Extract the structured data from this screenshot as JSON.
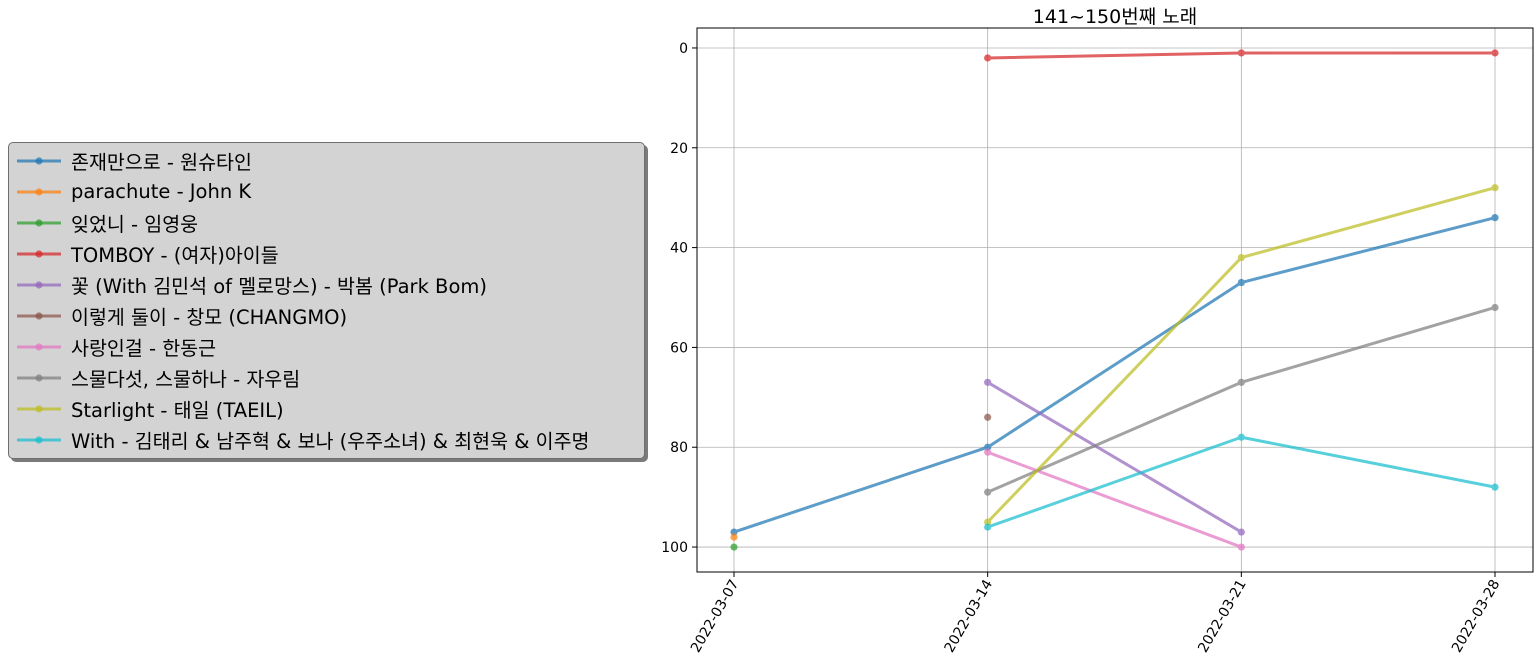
{
  "chart_data": {
    "type": "line",
    "title": "141~150번째 노래",
    "xlabel": "",
    "ylabel": "",
    "x": [
      "2022-03-07",
      "2022-03-14",
      "2022-03-21",
      "2022-03-28"
    ],
    "ylim": [
      105,
      -4
    ],
    "y_inverted": true,
    "yticks": [
      0,
      20,
      40,
      60,
      80,
      100
    ],
    "grid": true,
    "legend_position": "left-outside",
    "series": [
      {
        "name": "존재만으로 - 원슈타인",
        "color": "#1f77b4",
        "values": [
          97,
          80,
          47,
          34
        ]
      },
      {
        "name": "parachute - John K",
        "color": "#ff7f0e",
        "values": [
          98,
          null,
          null,
          null
        ]
      },
      {
        "name": "잊었니 - 임영웅",
        "color": "#2ca02c",
        "values": [
          100,
          null,
          null,
          null
        ]
      },
      {
        "name": "TOMBOY - (여자)아이들",
        "color": "#d62728",
        "values": [
          null,
          2,
          1,
          1
        ]
      },
      {
        "name": "꽃 (With 김민석 of 멜로망스) - 박봄 (Park Bom)",
        "color": "#9467bd",
        "values": [
          null,
          67,
          97,
          null
        ]
      },
      {
        "name": "이렇게 둘이 - 창모 (CHANGMO)",
        "color": "#8c564b",
        "values": [
          null,
          74,
          null,
          null
        ]
      },
      {
        "name": "사랑인걸 - 한동근",
        "color": "#e377c2",
        "values": [
          null,
          81,
          100,
          null
        ]
      },
      {
        "name": "스물다섯, 스물하나 - 자우림",
        "color": "#7f7f7f",
        "values": [
          null,
          89,
          67,
          52
        ]
      },
      {
        "name": "Starlight - 태일 (TAEIL)",
        "color": "#bcbd22",
        "values": [
          null,
          95,
          42,
          28
        ]
      },
      {
        "name": "With - 김태리 & 남주혁 & 보나 (우주소녀) & 최현욱 & 이주명",
        "color": "#17becf",
        "values": [
          null,
          96,
          78,
          88
        ]
      }
    ]
  }
}
